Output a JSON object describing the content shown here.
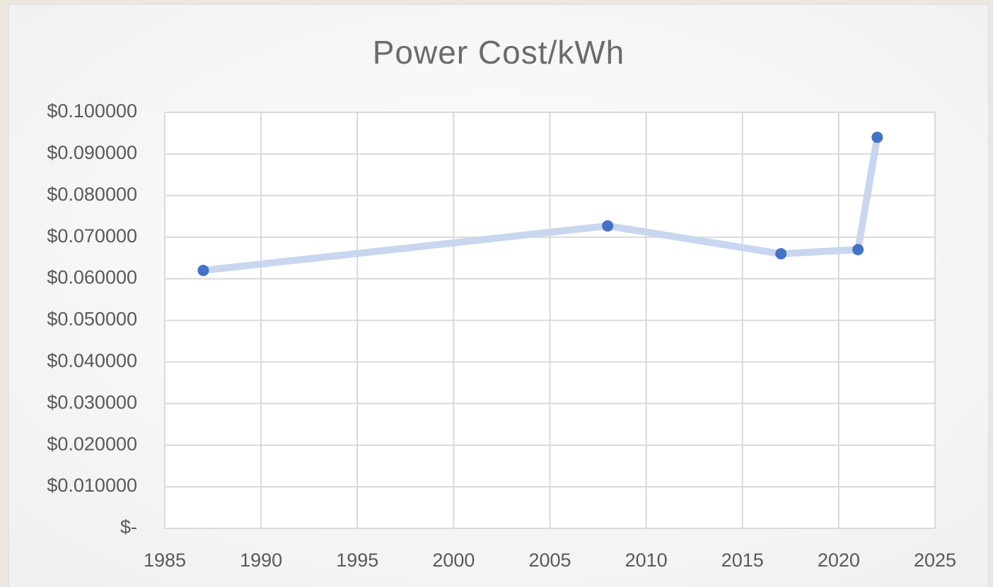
{
  "chart_data": {
    "type": "line",
    "title": "Power Cost/kWh",
    "x": [
      1987,
      2008,
      2017,
      2021,
      2022
    ],
    "values": [
      0.062,
      0.0727,
      0.066,
      0.067,
      0.094
    ],
    "color": "#4472c4",
    "line_color": "#c9d6ef",
    "xlim": [
      1985,
      2025
    ],
    "xticks": [
      1985,
      1990,
      1995,
      2000,
      2005,
      2010,
      2015,
      2020,
      2025
    ],
    "ylim": [
      0,
      0.1
    ],
    "yticks": [
      {
        "value": 0,
        "label": "$-"
      },
      {
        "value": 0.01,
        "label": "$0.010000"
      },
      {
        "value": 0.02,
        "label": "$0.020000"
      },
      {
        "value": 0.03,
        "label": "$0.030000"
      },
      {
        "value": 0.04,
        "label": "$0.040000"
      },
      {
        "value": 0.05,
        "label": "$0.050000"
      },
      {
        "value": 0.06,
        "label": "$0.060000"
      },
      {
        "value": 0.07,
        "label": "$0.070000"
      },
      {
        "value": 0.08,
        "label": "$0.080000"
      },
      {
        "value": 0.09,
        "label": "$0.090000"
      },
      {
        "value": 0.1,
        "label": "$0.100000"
      }
    ],
    "grid": true
  }
}
